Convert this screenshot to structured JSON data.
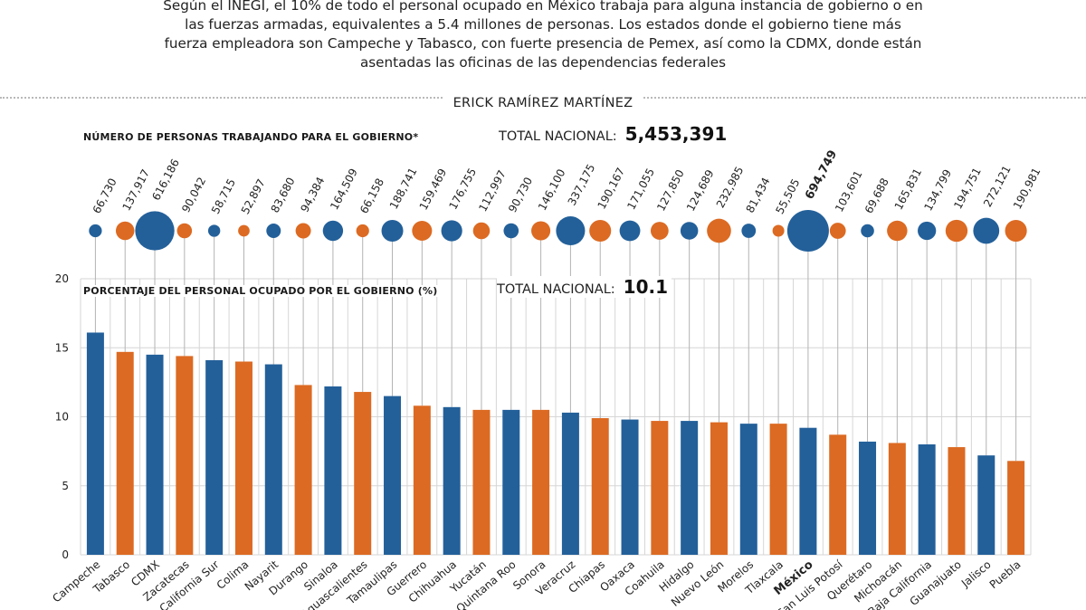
{
  "header": {
    "intro": "Según el INEGI, el 10% de todo el personal ocupado en México trabaja para alguna instancia de gobierno o en las fuerzas armadas, equivalentes a 5.4 millones de personas. Los estados donde el gobierno tiene más fuerza empleadora son Campeche y Tabasco, con fuerte presencia de Pemex, así como la CDMX, donde están asentadas las oficinas de las dependencias federales",
    "author": "ERICK RAMÍREZ MARTÍNEZ"
  },
  "people_section": {
    "title": "NÚMERO DE PERSONAS TRABAJANDO PARA EL GOBIERNO*",
    "total_label": "TOTAL NACIONAL:",
    "total_value": "5,453,391"
  },
  "percent_section": {
    "title": "PORCENTAJE DEL PERSONAL OCUPADO POR EL GOBIERNO (%)",
    "total_label": "TOTAL NACIONAL:",
    "total_value": "10.1"
  },
  "colors": {
    "blue": "#23609a",
    "orange": "#dc6a22",
    "grid": "#d6d6d6",
    "leader": "#b3b3b3"
  },
  "chart_data": {
    "type": "bar",
    "title": "PORCENTAJE DEL PERSONAL OCUPADO POR EL GOBIERNO (%)",
    "xlabel": "",
    "ylabel": "",
    "ylim": [
      0,
      20
    ],
    "yticks": [
      0,
      5,
      10,
      15,
      20
    ],
    "highlight": "México",
    "categories": [
      "Campeche",
      "Tabasco",
      "CDMX",
      "Zacatecas",
      "Baja California Sur",
      "Colima",
      "Nayarit",
      "Durango",
      "Sinaloa",
      "Aguascalientes",
      "Tamaulipas",
      "Guerrero",
      "Chihuahua",
      "Yucatán",
      "Quintana Roo",
      "Sonora",
      "Veracruz",
      "Chiapas",
      "Oaxaca",
      "Coahuila",
      "Hidalgo",
      "Nuevo León",
      "Morelos",
      "Tlaxcala",
      "México",
      "San Luis Potosí",
      "Querétaro",
      "Michoacán",
      "Baja California",
      "Guanajuato",
      "Jalisco",
      "Puebla"
    ],
    "values": [
      16.1,
      14.7,
      14.5,
      14.4,
      14.1,
      14.0,
      13.8,
      12.3,
      12.2,
      11.8,
      11.5,
      10.8,
      10.7,
      10.5,
      10.5,
      10.5,
      10.3,
      9.9,
      9.8,
      9.7,
      9.7,
      9.6,
      9.5,
      9.5,
      9.2,
      8.7,
      8.2,
      8.1,
      8.0,
      7.8,
      7.2,
      6.8
    ],
    "people": [
      66730,
      137917,
      616186,
      90042,
      58715,
      52897,
      83680,
      94384,
      164509,
      66158,
      188741,
      159469,
      176755,
      112997,
      90730,
      146100,
      337175,
      190167,
      171055,
      127850,
      124689,
      232985,
      81434,
      55505,
      694749,
      103601,
      69688,
      165831,
      134799,
      194751,
      272121,
      190981
    ],
    "people_labels": [
      "66,730",
      "137,917",
      "616,186",
      "90,042",
      "58,715",
      "52,897",
      "83,680",
      "94,384",
      "164,509",
      "66,158",
      "188,741",
      "159,469",
      "176,755",
      "112,997",
      "90,730",
      "146,100",
      "337,175",
      "190,167",
      "171,055",
      "127,850",
      "124,689",
      "232,985",
      "81,434",
      "55,505",
      "694,749",
      "103,601",
      "69,688",
      "165,831",
      "134,799",
      "194,751",
      "272,121",
      "190,981"
    ]
  }
}
